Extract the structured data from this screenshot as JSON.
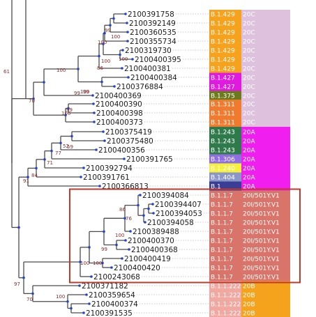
{
  "colors": {
    "branch": "#4a4a4a",
    "node_dot": "#2244cc",
    "support": "#8b2a2a",
    "dotted_leader": "#b8b8b8",
    "highlight_box": "#c0392b",
    "lineage": {
      "B.1.429": "#f7a21c",
      "B.1.427": "#e01adf",
      "B.1.375": "#6b7a1c",
      "B.1.311": "#f07b2f",
      "B.1.243": "#2f7a4b",
      "B.1.306": "#8e6ee0",
      "B.1.240": "#f5f03c",
      "B.1.404": "#8b96c8",
      "B.1": "#3a3d96",
      "B.1.1.7": "#d8746a",
      "B.1.1.222": "#f0a8a0"
    },
    "clade": {
      "20C": "#ddc1dd",
      "20A": "#f01ff0",
      "20I/501Y.V1": "#d8746a",
      "20B": "#f5a21c"
    }
  },
  "leaves": [
    {
      "id": "2100391758",
      "lineage": "B.1.429",
      "clade": "20C"
    },
    {
      "id": "2100392149",
      "lineage": "B.1.429",
      "clade": "20C"
    },
    {
      "id": "2100360535",
      "lineage": "B.1.429",
      "clade": "20C"
    },
    {
      "id": "2100355734",
      "lineage": "B.1.429",
      "clade": "20C"
    },
    {
      "id": "2100319730",
      "lineage": "B.1.429",
      "clade": "20C"
    },
    {
      "id": "2100400395",
      "lineage": "B.1.429",
      "clade": "20C"
    },
    {
      "id": "2100400381",
      "lineage": "B.1.429",
      "clade": "20C"
    },
    {
      "id": "2100400384",
      "lineage": "B.1.427",
      "clade": "20C"
    },
    {
      "id": "2100376884",
      "lineage": "B.1.427",
      "clade": "20C"
    },
    {
      "id": "2100400369",
      "lineage": "B.1.375",
      "clade": "20C"
    },
    {
      "id": "2100400390",
      "lineage": "B.1.311",
      "clade": "20C"
    },
    {
      "id": "2100400398",
      "lineage": "B.1.311",
      "clade": "20C"
    },
    {
      "id": "2100400373",
      "lineage": "B.1.311",
      "clade": "20C"
    },
    {
      "id": "2100375419",
      "lineage": "B.1.243",
      "clade": "20A"
    },
    {
      "id": "2100375480",
      "lineage": "B.1.243",
      "clade": "20A"
    },
    {
      "id": "2100400356",
      "lineage": "B.1.243",
      "clade": "20A"
    },
    {
      "id": "2100391765",
      "lineage": "B.1.306",
      "clade": "20A"
    },
    {
      "id": "2100392794",
      "lineage": "B.1.240",
      "clade": "20A"
    },
    {
      "id": "2100391761",
      "lineage": "B.1.404",
      "clade": "20A"
    },
    {
      "id": "2100366813",
      "lineage": "B.1",
      "clade": "20A"
    },
    {
      "id": "2100394084",
      "lineage": "B.1.1.7",
      "clade": "20I/501Y.V1"
    },
    {
      "id": "2100394407",
      "lineage": "B.1.1.7",
      "clade": "20I/501Y.V1"
    },
    {
      "id": "2100394053",
      "lineage": "B.1.1.7",
      "clade": "20I/501Y.V1"
    },
    {
      "id": "2100394058",
      "lineage": "B.1.1.7",
      "clade": "20I/501Y.V1"
    },
    {
      "id": "2100389488",
      "lineage": "B.1.1.7",
      "clade": "20I/501Y.V1"
    },
    {
      "id": "2100400370",
      "lineage": "B.1.1.7",
      "clade": "20I/501Y.V1"
    },
    {
      "id": "2100400368",
      "lineage": "B.1.1.7",
      "clade": "20I/501Y.V1"
    },
    {
      "id": "2100400419",
      "lineage": "B.1.1.7",
      "clade": "20I/501Y.V1"
    },
    {
      "id": "2100400420",
      "lineage": "B.1.1.7",
      "clade": "20I/501Y.V1"
    },
    {
      "id": "2100243068",
      "lineage": "B.1.1.7",
      "clade": "20I/501Y.V1"
    },
    {
      "id": "2100371182",
      "lineage": "B.1.1.222",
      "clade": "20B"
    },
    {
      "id": "2100359654",
      "lineage": "B.1.1.222",
      "clade": "20B"
    },
    {
      "id": "2100400374",
      "lineage": "B.1.1.222",
      "clade": "20B"
    },
    {
      "id": "2100391535",
      "lineage": "B.1.1.222",
      "clade": "20B"
    }
  ],
  "clade_blocks": [
    {
      "label": "20C",
      "first": 0,
      "last": 12
    },
    {
      "label": "20A",
      "first": 13,
      "last": 19
    },
    {
      "label": "20I/501Y.V1",
      "first": 20,
      "last": 29
    },
    {
      "label": "20B",
      "first": 30,
      "last": 33
    }
  ],
  "highlight": {
    "first": 20,
    "last": 29,
    "color": "#c0392b"
  },
  "supports": [
    "61",
    "70",
    "91",
    "97",
    "70",
    "100",
    "99",
    "100",
    "100",
    "100",
    "100",
    "99",
    "100",
    "99",
    "99",
    "86",
    "100",
    "59",
    "52",
    "77",
    "71",
    "84",
    "86",
    "76",
    "100",
    "99",
    "100",
    "100",
    "100"
  ]
}
